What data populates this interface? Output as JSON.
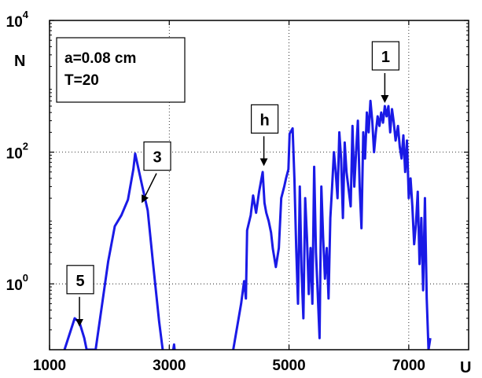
{
  "chart_data": {
    "type": "line",
    "title": "",
    "xlabel": "U",
    "ylabel": "N",
    "xlim": [
      1000,
      8000
    ],
    "ylim": [
      0.1,
      10000
    ],
    "yscale": "log",
    "grid": "dotted",
    "x_ticks": [
      {
        "value": 1000,
        "label": "1000"
      },
      {
        "value": 3000,
        "label": "3000"
      },
      {
        "value": 5000,
        "label": "5000"
      },
      {
        "value": 7000,
        "label": "7000"
      }
    ],
    "y_ticks": [
      {
        "value": 1,
        "base": "10",
        "exp": "0"
      },
      {
        "value": 100,
        "base": "10",
        "exp": "2"
      },
      {
        "value": 10000,
        "base": "10",
        "exp": "4"
      }
    ],
    "line_color": "#1a1ae6",
    "series": [
      {
        "points": [
          [
            1250,
            0.1
          ],
          [
            1420,
            0.3
          ],
          [
            1500,
            0.26
          ],
          [
            1580,
            0.15
          ],
          [
            1620,
            0.1
          ],
          [
            1770,
            0.1
          ],
          [
            1980,
            2.2
          ],
          [
            2090,
            7.5
          ],
          [
            2200,
            11
          ],
          [
            2310,
            19
          ],
          [
            2400,
            55
          ],
          [
            2430,
            95
          ],
          [
            2550,
            30
          ],
          [
            2640,
            13
          ],
          [
            2730,
            2.0
          ],
          [
            2830,
            0.27
          ],
          [
            2890,
            0.1
          ],
          [
            3050,
            0.08
          ],
          [
            3080,
            0.12
          ],
          [
            3100,
            0.08
          ],
          [
            4050,
            0.08
          ],
          [
            4200,
            0.5
          ],
          [
            4250,
            1.1
          ],
          [
            4280,
            0.6
          ],
          [
            4300,
            6.5
          ],
          [
            4360,
            11
          ],
          [
            4400,
            22
          ],
          [
            4450,
            12
          ],
          [
            4500,
            25
          ],
          [
            4560,
            50
          ],
          [
            4590,
            17
          ],
          [
            4620,
            12
          ],
          [
            4660,
            9
          ],
          [
            4700,
            6
          ],
          [
            4730,
            3.4
          ],
          [
            4780,
            1.8
          ],
          [
            4830,
            3.5
          ],
          [
            4870,
            20
          ],
          [
            4920,
            30
          ],
          [
            4950,
            40
          ],
          [
            4990,
            55
          ],
          [
            5010,
            190
          ],
          [
            5060,
            230
          ],
          [
            5090,
            40
          ],
          [
            5120,
            3.5
          ],
          [
            5150,
            0.5
          ],
          [
            5180,
            30
          ],
          [
            5210,
            1.5
          ],
          [
            5240,
            0.3
          ],
          [
            5270,
            20
          ],
          [
            5300,
            5
          ],
          [
            5330,
            0.7
          ],
          [
            5360,
            3.5
          ],
          [
            5390,
            0.5
          ],
          [
            5420,
            60
          ],
          [
            5450,
            3
          ],
          [
            5480,
            0.7
          ],
          [
            5510,
            0.15
          ],
          [
            5540,
            30
          ],
          [
            5570,
            5
          ],
          [
            5600,
            1.2
          ],
          [
            5630,
            3.5
          ],
          [
            5660,
            0.6
          ],
          [
            5690,
            10
          ],
          [
            5720,
            30
          ],
          [
            5750,
            100
          ],
          [
            5780,
            50
          ],
          [
            5810,
            20
          ],
          [
            5840,
            200
          ],
          [
            5870,
            80
          ],
          [
            5900,
            10
          ],
          [
            5930,
            140
          ],
          [
            5960,
            50
          ],
          [
            5990,
            30
          ],
          [
            6030,
            15
          ],
          [
            6060,
            250
          ],
          [
            6090,
            30
          ],
          [
            6120,
            100
          ],
          [
            6150,
            300
          ],
          [
            6180,
            30
          ],
          [
            6210,
            7
          ],
          [
            6240,
            200
          ],
          [
            6270,
            80
          ],
          [
            6300,
            400
          ],
          [
            6330,
            200
          ],
          [
            6360,
            600
          ],
          [
            6390,
            300
          ],
          [
            6420,
            100
          ],
          [
            6450,
            200
          ],
          [
            6480,
            350
          ],
          [
            6510,
            250
          ],
          [
            6540,
            400
          ],
          [
            6570,
            280
          ],
          [
            6600,
            500
          ],
          [
            6630,
            350
          ],
          [
            6660,
            500
          ],
          [
            6690,
            200
          ],
          [
            6720,
            450
          ],
          [
            6750,
            280
          ],
          [
            6780,
            150
          ],
          [
            6820,
            250
          ],
          [
            6850,
            120
          ],
          [
            6880,
            80
          ],
          [
            6910,
            180
          ],
          [
            6940,
            50
          ],
          [
            6970,
            150
          ],
          [
            7000,
            20
          ],
          [
            7030,
            40
          ],
          [
            7060,
            15
          ],
          [
            7090,
            4
          ],
          [
            7120,
            8
          ],
          [
            7150,
            25
          ],
          [
            7180,
            2
          ],
          [
            7210,
            10
          ],
          [
            7240,
            0.8
          ],
          [
            7270,
            20
          ],
          [
            7300,
            0.6
          ],
          [
            7330,
            0.1
          ],
          [
            7360,
            0.15
          ]
        ]
      }
    ],
    "annotations": [
      {
        "label": "1",
        "tip_x": 6600,
        "tip_y": 500
      },
      {
        "label": "h",
        "tip_x": 4580,
        "tip_y": 55
      },
      {
        "label": "3",
        "tip_x": 2550,
        "tip_y": 15
      },
      {
        "label": "5",
        "tip_x": 1500,
        "tip_y": 0.2
      }
    ],
    "legend_box": {
      "line1": "a=0.08 cm",
      "line2": "T=20"
    }
  }
}
